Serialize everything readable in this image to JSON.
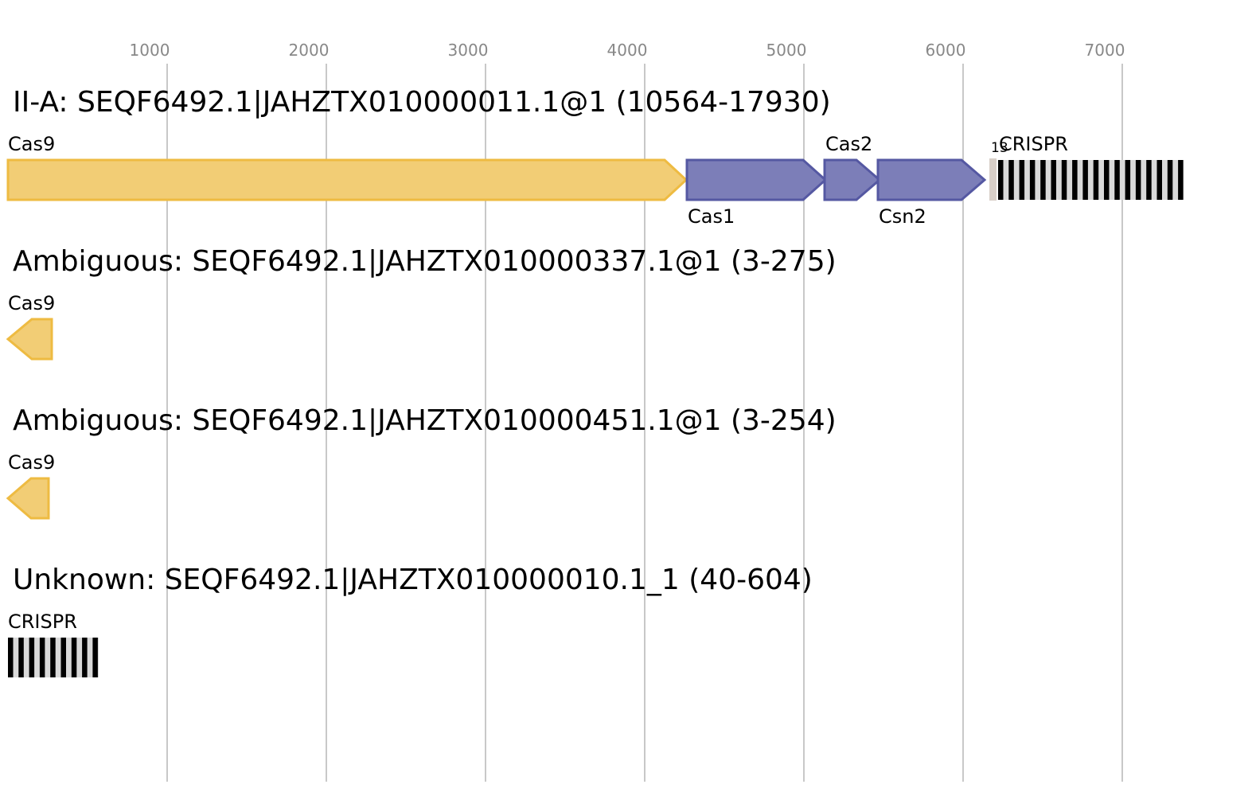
{
  "axis": {
    "ticks": [
      "1000",
      "2000",
      "3000",
      "4000",
      "5000",
      "6000",
      "7000"
    ]
  },
  "colors": {
    "gridline": "#c8c8c8",
    "axis_text": "#888888",
    "cas9_fill": "#f2cd75",
    "cas9_stroke": "#eebb42",
    "adaptation_fill": "#7c7eb8",
    "adaptation_stroke": "#5558a2",
    "repeat_black": "#000000",
    "repeat_light": "#d9d9d9",
    "leader_fill": "#d8cfc8"
  },
  "tracks": [
    {
      "title": "II-A: SEQF6492.1|JAHZTX010000011.1@1 (10564-17930)",
      "genes": [
        {
          "label": "Cas9",
          "label_position": "above",
          "color": "cas9",
          "strand": "+"
        },
        {
          "label": "Cas1",
          "label_position": "below",
          "color": "adaptation",
          "strand": "+"
        },
        {
          "label": "Cas2",
          "label_position": "above",
          "color": "adaptation",
          "strand": "+"
        },
        {
          "label": "Csn2",
          "label_position": "below",
          "color": "adaptation",
          "strand": "+"
        }
      ],
      "crispr": {
        "label": "CRISPR",
        "count_label": "13",
        "leader_marker": true
      }
    },
    {
      "title": "Ambiguous: SEQF6492.1|JAHZTX010000337.1@1 (3-275)",
      "genes": [
        {
          "label": "Cas9",
          "label_position": "above",
          "color": "cas9",
          "strand": "-"
        }
      ]
    },
    {
      "title": "Ambiguous: SEQF6492.1|JAHZTX010000451.1@1 (3-254)",
      "genes": [
        {
          "label": "Cas9",
          "label_position": "above",
          "color": "cas9",
          "strand": "-"
        }
      ]
    },
    {
      "title": "Unknown: SEQF6492.1|JAHZTX010000010.1_1 (40-604)",
      "genes": [],
      "crispr": {
        "label": "CRISPR",
        "leader_marker": false
      }
    }
  ]
}
